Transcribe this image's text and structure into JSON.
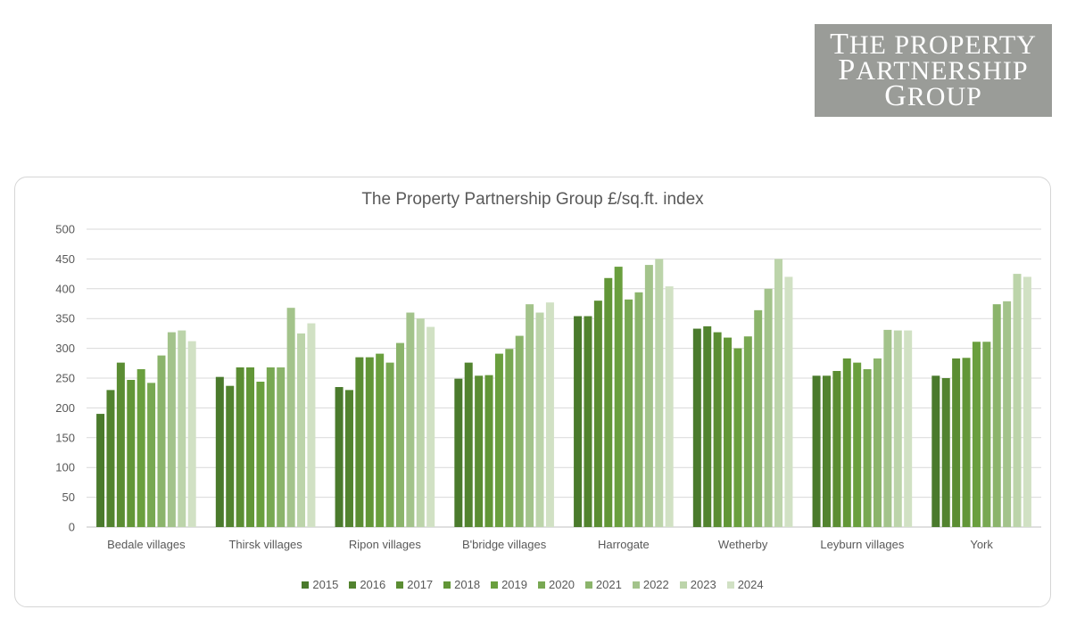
{
  "logo": {
    "lines": [
      "The Property",
      "Partnership",
      "Group"
    ]
  },
  "chart_data": {
    "type": "bar",
    "title": "The Property Partnership Group £/sq.ft. index",
    "xlabel": "",
    "ylabel": "",
    "ylim": [
      0,
      500
    ],
    "yticks": [
      0,
      50,
      100,
      150,
      200,
      250,
      300,
      350,
      400,
      450,
      500
    ],
    "grid": true,
    "legend_position": "bottom",
    "categories": [
      "Bedale villages",
      "Thirsk villages",
      "Ripon villages",
      "B'bridge villages",
      "Harrogate",
      "Wetherby",
      "Leyburn villages",
      "York"
    ],
    "series": [
      {
        "name": "2015",
        "color": "#4a7a2c",
        "values": [
          190,
          252,
          235,
          249,
          354,
          333,
          254,
          254
        ]
      },
      {
        "name": "2016",
        "color": "#52832f",
        "values": [
          230,
          237,
          230,
          276,
          354,
          337,
          254,
          250
        ]
      },
      {
        "name": "2017",
        "color": "#5b8d33",
        "values": [
          276,
          268,
          285,
          254,
          380,
          327,
          262,
          283
        ]
      },
      {
        "name": "2018",
        "color": "#629637",
        "values": [
          247,
          268,
          285,
          255,
          418,
          318,
          283,
          284
        ]
      },
      {
        "name": "2019",
        "color": "#6a9f3e",
        "values": [
          265,
          244,
          291,
          291,
          437,
          300,
          276,
          311
        ]
      },
      {
        "name": "2020",
        "color": "#78a852",
        "values": [
          242,
          268,
          276,
          299,
          382,
          320,
          265,
          311
        ]
      },
      {
        "name": "2021",
        "color": "#8bb46b",
        "values": [
          288,
          268,
          309,
          321,
          394,
          364,
          283,
          374
        ]
      },
      {
        "name": "2022",
        "color": "#a3c38b",
        "values": [
          327,
          368,
          360,
          374,
          440,
          400,
          331,
          379
        ]
      },
      {
        "name": "2023",
        "color": "#bcd4aa",
        "values": [
          330,
          325,
          350,
          360,
          450,
          450,
          330,
          425
        ]
      },
      {
        "name": "2024",
        "color": "#d1e1c4",
        "values": [
          312,
          342,
          336,
          377,
          404,
          420,
          330,
          420
        ]
      }
    ]
  }
}
